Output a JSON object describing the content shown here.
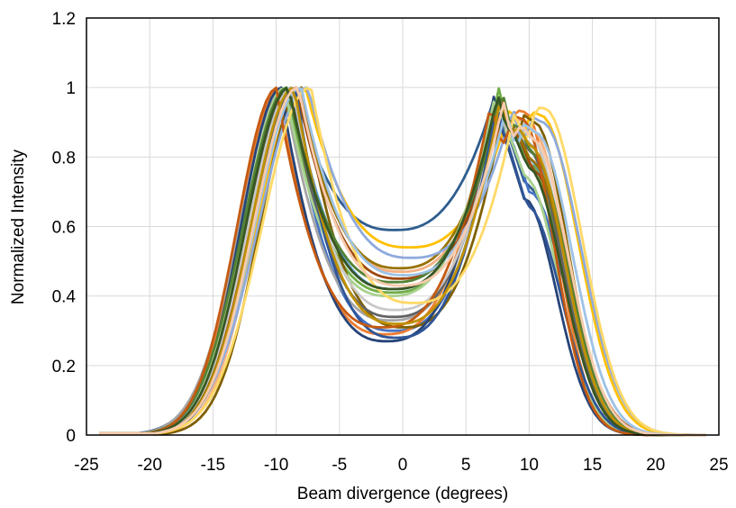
{
  "chart_data": {
    "type": "line",
    "title": "",
    "xlabel": "Beam divergence (degrees)",
    "ylabel": "Normalized Intensity",
    "xlim": [
      -25,
      25
    ],
    "ylim": [
      0,
      1.2
    ],
    "xticks": [
      -25,
      -20,
      -15,
      -10,
      -5,
      0,
      5,
      10,
      15,
      20,
      25
    ],
    "yticks": [
      0,
      0.2,
      0.4,
      0.6,
      0.8,
      1,
      1.2
    ],
    "xtick_labels": [
      "-25",
      "-20",
      "-15",
      "-10",
      "-5",
      "0",
      "5",
      "10",
      "15",
      "20",
      "25"
    ],
    "ytick_labels": [
      "0",
      "0.2",
      "0.4",
      "0.6",
      "0.8",
      "1",
      "1.2"
    ],
    "grid": true,
    "legend": "none",
    "series": [
      {
        "color": "#2E5D8E",
        "lp": -8.6,
        "rp": 7.3,
        "rh": 0.98,
        "c": 0.59,
        "w": 3.6,
        "sh": 0.0,
        "side": 0.72
      },
      {
        "color": "#4472C4",
        "lp": -9.0,
        "rp": 7.6,
        "rh": 0.96,
        "c": 0.3,
        "w": 3.4,
        "sh": 0.0,
        "side": 0.7
      },
      {
        "color": "#ED7D31",
        "lp": -9.8,
        "rp": 7.2,
        "rh": 0.95,
        "c": 0.29,
        "w": 3.0,
        "sh": -0.5,
        "side": 0.93
      },
      {
        "color": "#F4B183",
        "lp": -8.2,
        "rp": 7.8,
        "rh": 0.97,
        "c": 0.47,
        "w": 3.2,
        "sh": 0.3,
        "side": 0.88
      },
      {
        "color": "#A5A5A5",
        "lp": -9.4,
        "rp": 7.5,
        "rh": 0.95,
        "c": 0.33,
        "w": 3.3,
        "sh": 0.0,
        "side": 0.84
      },
      {
        "color": "#FFC000",
        "lp": -7.8,
        "rp": 8.5,
        "rh": 0.96,
        "c": 0.54,
        "w": 3.5,
        "sh": 0.6,
        "side": 0.92
      },
      {
        "color": "#5B9BD5",
        "lp": -8.8,
        "rp": 7.4,
        "rh": 0.97,
        "c": 0.42,
        "w": 3.3,
        "sh": 0.0,
        "side": 0.8
      },
      {
        "color": "#70AD47",
        "lp": -9.2,
        "rp": 7.6,
        "rh": 0.99,
        "c": 0.41,
        "w": 3.2,
        "sh": -0.2,
        "side": 0.78
      },
      {
        "color": "#7F6000",
        "lp": -8.0,
        "rp": 8.0,
        "rh": 0.96,
        "c": 0.31,
        "w": 3.1,
        "sh": 0.2,
        "side": 0.9
      },
      {
        "color": "#264478",
        "lp": -9.6,
        "rp": 7.2,
        "rh": 0.96,
        "c": 0.27,
        "w": 3.0,
        "sh": -0.3,
        "side": 0.68
      },
      {
        "color": "#9E480E",
        "lp": -8.4,
        "rp": 7.9,
        "rh": 0.97,
        "c": 0.45,
        "w": 3.4,
        "sh": 0.1,
        "side": 0.76
      },
      {
        "color": "#636363",
        "lp": -8.9,
        "rp": 7.5,
        "rh": 0.96,
        "c": 0.34,
        "w": 3.2,
        "sh": 0.0,
        "side": 0.82
      },
      {
        "color": "#997300",
        "lp": -8.3,
        "rp": 7.7,
        "rh": 0.98,
        "c": 0.48,
        "w": 3.4,
        "sh": 0.2,
        "side": 0.79
      },
      {
        "color": "#8FAADC",
        "lp": -7.6,
        "rp": 8.6,
        "rh": 0.95,
        "c": 0.51,
        "w": 3.6,
        "sh": 0.7,
        "side": 0.9
      },
      {
        "color": "#A9D18E",
        "lp": -9.3,
        "rp": 7.3,
        "rh": 0.97,
        "c": 0.4,
        "w": 3.1,
        "sh": -0.2,
        "side": 0.74
      },
      {
        "color": "#C9C9C9",
        "lp": -8.7,
        "rp": 7.6,
        "rh": 0.96,
        "c": 0.36,
        "w": 3.3,
        "sh": 0.0,
        "side": 0.86
      },
      {
        "color": "#548235",
        "lp": -9.1,
        "rp": 7.8,
        "rh": 0.99,
        "c": 0.44,
        "w": 3.3,
        "sh": 0.0,
        "side": 0.81
      },
      {
        "color": "#2F5597",
        "lp": -8.5,
        "rp": 7.4,
        "rh": 0.95,
        "c": 0.28,
        "w": 3.2,
        "sh": 0.1,
        "side": 0.66
      },
      {
        "color": "#C55A11",
        "lp": -9.9,
        "rp": 7.0,
        "rh": 0.94,
        "c": 0.31,
        "w": 3.0,
        "sh": -0.6,
        "side": 0.91
      },
      {
        "color": "#FFD966",
        "lp": -7.4,
        "rp": 8.8,
        "rh": 0.95,
        "c": 0.38,
        "w": 3.5,
        "sh": 0.8,
        "side": 0.94
      },
      {
        "color": "#9DC3E6",
        "lp": -8.1,
        "rp": 8.1,
        "rh": 0.94,
        "c": 0.46,
        "w": 3.4,
        "sh": 0.4,
        "side": 0.87
      },
      {
        "color": "#BF9000",
        "lp": -8.6,
        "rp": 7.7,
        "rh": 0.97,
        "c": 0.32,
        "w": 3.2,
        "sh": 0.1,
        "side": 0.83
      },
      {
        "color": "#375623",
        "lp": -9.0,
        "rp": 7.5,
        "rh": 0.98,
        "c": 0.42,
        "w": 3.2,
        "sh": 0.0,
        "side": 0.77
      },
      {
        "color": "#F8CBAD",
        "lp": -8.3,
        "rp": 7.9,
        "rh": 0.96,
        "c": 0.43,
        "w": 3.3,
        "sh": 0.3,
        "side": 0.85
      }
    ]
  }
}
